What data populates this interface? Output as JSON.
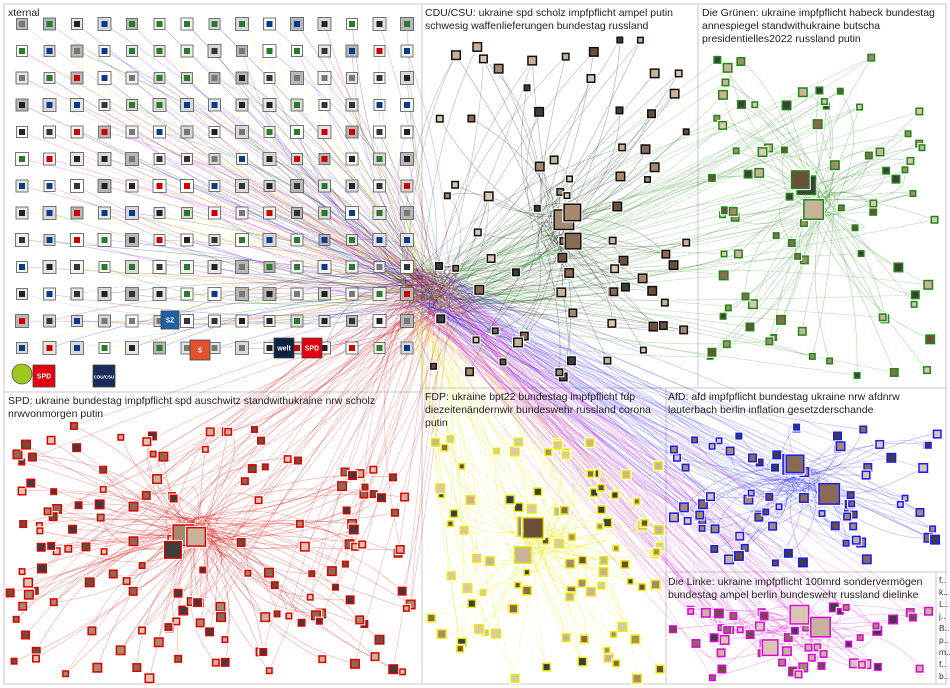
{
  "colors": {
    "external": "#9a9a9a",
    "cdu": "#111111",
    "gruene": "#1d8a12",
    "spd": "#e00000",
    "fdp": "#e8e800",
    "afd": "#1a1aff",
    "linke": "#e000e0",
    "frame": "#c8c8c8"
  },
  "groups": {
    "external": {
      "title": "xternal"
    },
    "cdu": {
      "title": "CDU/CSU: ukraine spd scholz impfpflicht ampel putin",
      "title2": "schwesig waffenlieferungen bundestag russland"
    },
    "gruene": {
      "title": "Die Grünen: ukraine impfpflicht habeck bundestag",
      "title2": "annespiegel standwithukraine butscha",
      "title3": "presidentielles2022 russland putin"
    },
    "spd": {
      "title": "SPD: ukraine bundestag impfpflicht spd auschwitz standwithukraine nrw scholz",
      "title2": "nrwvonmorgen putin"
    },
    "fdp": {
      "title": "FDP: ukraine bpt22 bundestag impfpflicht fdp",
      "title2": "diezeitenändernwir bundeswehr russland corona",
      "title3": "putin"
    },
    "afd": {
      "title": "AfD: afd impfpflicht bundestag ukraine nrw afdnrw",
      "title2": "lauterbach berlin inflation gesetzderschande"
    },
    "linke": {
      "title": "Die Linke: ukraine impfpflicht 100mrd sondervermögen",
      "title2": "bundestag ampel berlin bundeswehr russland dielinke"
    }
  },
  "side_list": [
    "f..",
    "k..",
    "L..",
    "j..",
    "B..",
    "p..",
    "m..",
    "f..",
    "b.."
  ],
  "logos": [
    "SPD",
    "CDU/CSU",
    "S",
    "SZ",
    "welt",
    "SPD"
  ]
}
